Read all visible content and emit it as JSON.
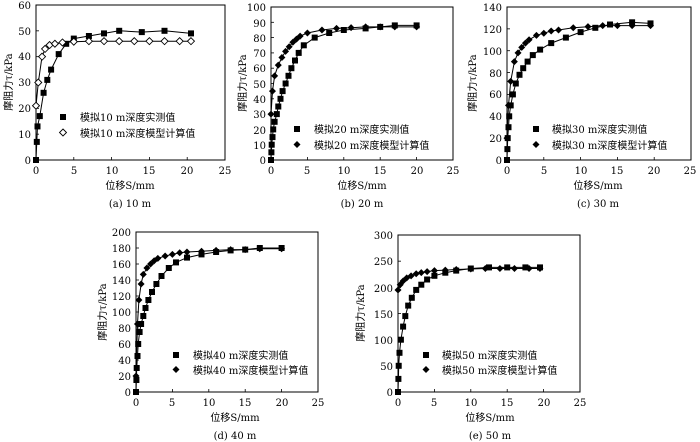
{
  "figure": {
    "charts": [
      {
        "caption": "(a) 10 m",
        "ylabel": "摩阻力τ/kPa",
        "xlabel": "位移S/mm",
        "xticks": [
          "0",
          "5",
          "10",
          "15",
          "20",
          "25"
        ],
        "yticks": [
          "0",
          "10",
          "20",
          "30",
          "40",
          "50",
          "60"
        ],
        "legend": [
          "模拟10 m深度实测值",
          "模拟10 m深度模型计算值"
        ]
      },
      {
        "caption": "(b) 20 m",
        "ylabel": "摩阻力τ/kPa",
        "xlabel": "位移S/mm",
        "xticks": [
          "0",
          "5",
          "10",
          "15",
          "20",
          "25"
        ],
        "yticks": [
          "0",
          "10",
          "20",
          "30",
          "40",
          "50",
          "60",
          "70",
          "80",
          "90",
          "100"
        ],
        "legend": [
          "模拟20 m深度实测值",
          "模拟20 m深度模型计算值"
        ]
      },
      {
        "caption": "(c) 30 m",
        "ylabel": "摩阻力τ/kPa",
        "xlabel": "位移S/mm",
        "xticks": [
          "0",
          "5",
          "10",
          "15",
          "20",
          "25"
        ],
        "yticks": [
          "0",
          "20",
          "40",
          "60",
          "80",
          "100",
          "120",
          "140"
        ],
        "legend": [
          "模拟30 m深度实测值",
          "模拟30 m深度模型计算值"
        ]
      },
      {
        "caption": "(d) 40 m",
        "ylabel": "摩阻力τ/kPa",
        "xlabel": "位移S/mm",
        "xticks": [
          "0",
          "5",
          "10",
          "15",
          "20",
          "25"
        ],
        "yticks": [
          "0",
          "20",
          "40",
          "60",
          "80",
          "100",
          "120",
          "140",
          "160",
          "180",
          "200"
        ],
        "legend": [
          "模拟40 m深度实测值",
          "模拟40 m深度模型计算值"
        ]
      },
      {
        "caption": "(e) 50 m",
        "ylabel": "摩阻力τ/kPa",
        "xlabel": "位移S/mm",
        "xticks": [
          "0",
          "5",
          "10",
          "15",
          "20",
          "25"
        ],
        "yticks": [
          "0",
          "50",
          "100",
          "150",
          "200",
          "250",
          "300"
        ],
        "legend": [
          "模拟50 m深度实测值",
          "模拟50 m深度模型计算值"
        ]
      }
    ]
  },
  "chart_data": [
    {
      "type": "line",
      "caption": "(a) 10 m",
      "xlabel": "位移S/mm",
      "ylabel": "摩阻力τ/kPa",
      "xlim": [
        0,
        25
      ],
      "ylim": [
        0,
        60
      ],
      "legend_position": "center",
      "series": [
        {
          "name": "模拟10 m深度实测值",
          "marker": "square",
          "x": [
            0,
            0.1,
            0.2,
            0.5,
            1,
            1.5,
            2,
            3,
            4,
            5,
            7,
            9,
            11,
            14,
            17,
            20.5
          ],
          "y": [
            0,
            7,
            13,
            17,
            26,
            31,
            35,
            41,
            45,
            47,
            48,
            49,
            50,
            49.5,
            50,
            49
          ]
        },
        {
          "name": "模拟10 m深度模型计算值",
          "marker": "diamond-open",
          "x": [
            0,
            0.3,
            0.8,
            1.2,
            1.8,
            2.5,
            3.5,
            5,
            7,
            9,
            11,
            13,
            15,
            17,
            19,
            20.5
          ],
          "y": [
            21,
            30,
            40,
            43,
            44.5,
            45,
            45.5,
            45.8,
            46,
            46,
            46,
            46,
            46,
            46,
            46,
            46
          ]
        }
      ]
    },
    {
      "type": "line",
      "caption": "(b) 20 m",
      "xlabel": "位移S/mm",
      "ylabel": "摩阻力τ/kPa",
      "xlim": [
        0,
        25
      ],
      "ylim": [
        0,
        100
      ],
      "legend_position": "bottom",
      "series": [
        {
          "name": "模拟20 m深度实测值",
          "marker": "square",
          "x": [
            0,
            0.05,
            0.1,
            0.2,
            0.3,
            0.5,
            0.8,
            1,
            1.3,
            1.6,
            2,
            2.4,
            2.8,
            3.3,
            3.8,
            4.5,
            6,
            8,
            10,
            13,
            15,
            17,
            20
          ],
          "y": [
            0,
            5,
            10,
            15,
            20,
            25,
            30,
            35,
            40,
            45,
            50,
            55,
            60,
            65,
            70,
            75,
            80,
            83,
            85,
            86,
            87,
            88,
            88
          ]
        },
        {
          "name": "模拟20 m深度模型计算值",
          "marker": "diamond",
          "x": [
            0,
            0.2,
            0.5,
            1,
            1.5,
            2,
            2.5,
            3,
            3.5,
            4,
            5,
            7,
            9,
            11,
            13,
            15,
            17,
            20
          ],
          "y": [
            30,
            45,
            55,
            62,
            67,
            71,
            74,
            77,
            79,
            81,
            83,
            85,
            86,
            86.5,
            87,
            87,
            87,
            87
          ]
        }
      ]
    },
    {
      "type": "line",
      "caption": "(c) 30 m",
      "xlabel": "位移S/mm",
      "ylabel": "摩阻力τ/kPa",
      "xlim": [
        0,
        25
      ],
      "ylim": [
        0,
        140
      ],
      "legend_position": "bottom",
      "series": [
        {
          "name": "模拟30 m深度实测值",
          "marker": "square",
          "x": [
            0,
            0.05,
            0.1,
            0.2,
            0.3,
            0.5,
            0.8,
            1.2,
            1.7,
            2.2,
            2.8,
            3.5,
            4.5,
            6,
            8,
            10,
            12,
            14,
            17,
            19.5
          ],
          "y": [
            0,
            10,
            20,
            30,
            40,
            50,
            60,
            70,
            78,
            84,
            90,
            96,
            101,
            107,
            112,
            117,
            121,
            124,
            126,
            125
          ]
        },
        {
          "name": "模拟30 m深度模型计算值",
          "marker": "diamond",
          "x": [
            0,
            0.2,
            0.5,
            1,
            1.5,
            2,
            2.5,
            3,
            4,
            5,
            6,
            7,
            9,
            11,
            13,
            15,
            17,
            19.5
          ],
          "y": [
            20,
            50,
            72,
            90,
            98,
            103,
            107,
            110,
            114,
            116,
            118,
            119,
            121,
            122,
            123,
            123,
            123,
            123
          ]
        }
      ]
    },
    {
      "type": "line",
      "caption": "(d) 40 m",
      "xlabel": "位移S/mm",
      "ylabel": "摩阻力τ/kPa",
      "xlim": [
        0,
        25
      ],
      "ylim": [
        0,
        200
      ],
      "legend_position": "bottom",
      "series": [
        {
          "name": "模拟40 m深度实测值",
          "marker": "square",
          "x": [
            0,
            0.05,
            0.1,
            0.2,
            0.3,
            0.5,
            0.7,
            1,
            1.3,
            1.7,
            2.2,
            2.8,
            3.5,
            4.5,
            5.5,
            7,
            9,
            11,
            13,
            15,
            17,
            20
          ],
          "y": [
            0,
            15,
            30,
            45,
            60,
            75,
            85,
            95,
            105,
            115,
            125,
            135,
            145,
            155,
            162,
            168,
            172,
            175,
            177,
            178,
            180,
            180
          ]
        },
        {
          "name": "模拟40 m深度模型计算值",
          "marker": "diamond",
          "x": [
            0,
            0.2,
            0.4,
            0.7,
            1,
            1.5,
            2,
            2.5,
            3,
            4,
            5,
            6,
            7,
            9,
            11,
            13,
            15,
            17,
            20
          ],
          "y": [
            20,
            85,
            115,
            135,
            147,
            155,
            160,
            164,
            167,
            170,
            172,
            174,
            175,
            176,
            177,
            178,
            178,
            179,
            179
          ]
        }
      ]
    },
    {
      "type": "line",
      "caption": "(e) 50 m",
      "xlabel": "位移S/mm",
      "ylabel": "摩阻力τ/kPa",
      "xlim": [
        0,
        25
      ],
      "ylim": [
        0,
        300
      ],
      "legend_position": "bottom",
      "series": [
        {
          "name": "模拟50 m深度实测值",
          "marker": "square",
          "x": [
            0,
            0.05,
            0.1,
            0.2,
            0.4,
            0.7,
            1,
            1.4,
            1.9,
            2.5,
            3.2,
            4,
            5,
            6.5,
            8,
            10,
            12.5,
            15,
            17.5,
            19.5
          ],
          "y": [
            0,
            25,
            50,
            75,
            100,
            125,
            145,
            165,
            180,
            195,
            205,
            215,
            222,
            228,
            232,
            236,
            238,
            238,
            238,
            238
          ]
        },
        {
          "name": "模拟50 m深度模型计算值",
          "marker": "diamond",
          "x": [
            0,
            0.3,
            0.7,
            1.2,
            1.8,
            2.5,
            3.2,
            4,
            5,
            6.5,
            8,
            10,
            12,
            14,
            16,
            18,
            19.5
          ],
          "y": [
            195,
            205,
            212,
            218,
            222,
            226,
            228,
            230,
            232,
            233,
            234,
            235,
            236,
            236,
            236,
            236,
            236
          ]
        }
      ]
    }
  ]
}
